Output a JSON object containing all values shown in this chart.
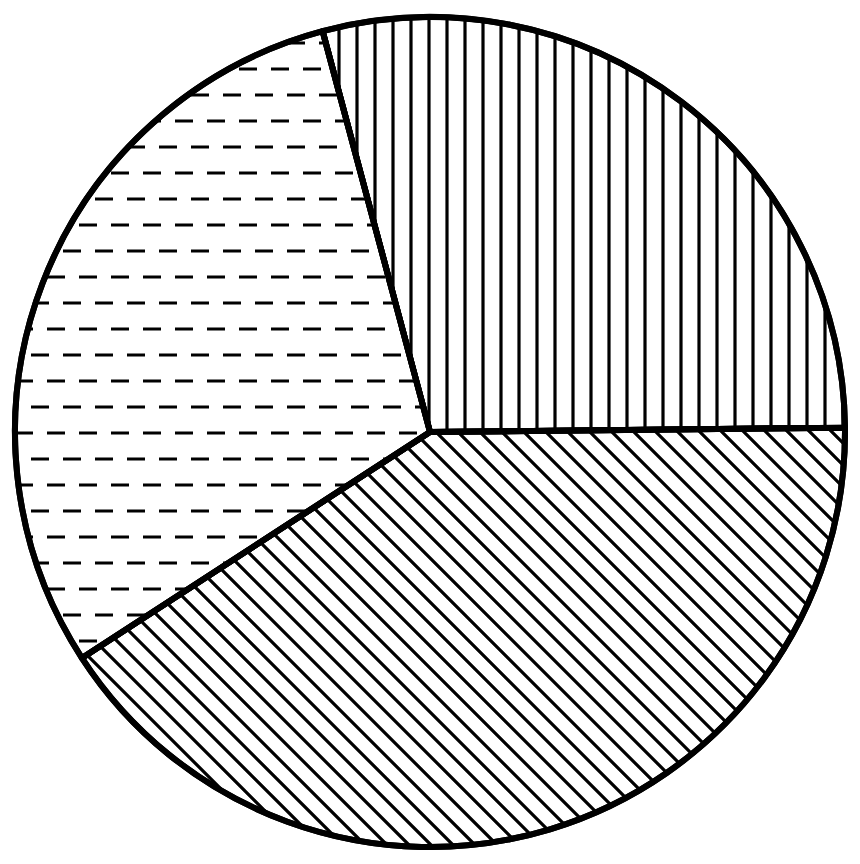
{
  "chart_data": {
    "type": "pie",
    "categories": [
      null,
      null,
      null
    ],
    "values": [
      29,
      41,
      30
    ],
    "colors": [
      "#ffffff",
      "#ffffff",
      "#ffffff"
    ],
    "legend": false
  }
}
